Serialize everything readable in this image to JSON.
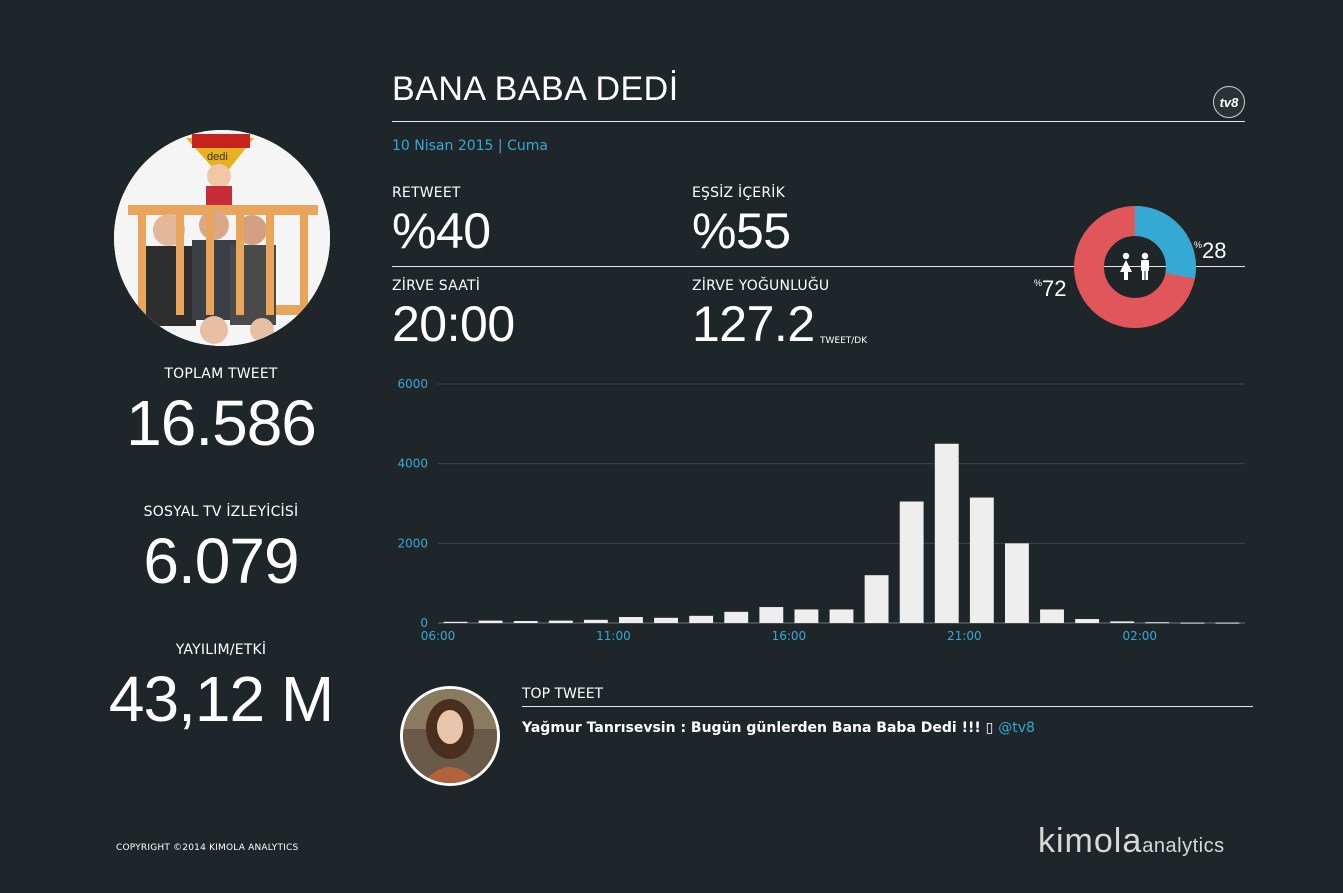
{
  "colors": {
    "background": "#1f2629",
    "accent_blue": "#35a9d3",
    "accent_red": "#e0565b",
    "bar": "#eeeeee"
  },
  "left": {
    "poster_alt": "Bana Baba Dedi poster",
    "total_tweet": {
      "label": "TOPLAM TWEET",
      "value": "16.586"
    },
    "social_viewers": {
      "label": "SOSYAL TV İZLEYİCİSİ",
      "value": "6.079"
    },
    "reach": {
      "label": "YAYILIM/ETKİ",
      "value": "43,12 M"
    }
  },
  "header": {
    "title": "BANA BABA DEDİ",
    "channel_logo": "tv8",
    "date": "10 Nisan 2015 | Cuma"
  },
  "kpis": {
    "retweet": {
      "label": "RETWEET",
      "value": "%40"
    },
    "unique": {
      "label": "EŞSİZ İÇERİK",
      "value": "%55"
    },
    "peak_time": {
      "label": "ZİRVE SAATİ",
      "value": "20:00"
    },
    "peak_density": {
      "label": "ZİRVE YOĞUNLUĞU",
      "value": "127.2",
      "unit": "TWEET/DK"
    }
  },
  "gender": {
    "icon": "female-male-icon",
    "female_pct": 28,
    "male_pct": 72,
    "female_label": "28",
    "male_label": "72",
    "percent_symbol": "%"
  },
  "chart_data": {
    "type": "bar",
    "x": [
      "06:00",
      "07:00",
      "08:00",
      "09:00",
      "10:00",
      "11:00",
      "12:00",
      "13:00",
      "14:00",
      "15:00",
      "16:00",
      "17:00",
      "18:00",
      "19:00",
      "20:00",
      "21:00",
      "22:00",
      "23:00",
      "00:00",
      "01:00",
      "02:00",
      "03:00",
      "04:00"
    ],
    "tick_labels": [
      "06:00",
      "11:00",
      "16:00",
      "21:00",
      "02:00"
    ],
    "tick_indices": [
      0,
      5,
      10,
      15,
      20
    ],
    "values": [
      30,
      60,
      50,
      60,
      80,
      150,
      130,
      180,
      280,
      400,
      340,
      340,
      1200,
      3050,
      4500,
      3150,
      2000,
      340,
      100,
      40,
      20,
      10,
      10
    ],
    "ylim": [
      0,
      6000
    ],
    "yticks": [
      "0",
      "2000",
      "4000",
      "6000"
    ],
    "grid": true
  },
  "top_tweet": {
    "label": "TOP TWEET",
    "author": "Yağmur Tanrısevsin",
    "text": "Yağmur Tanrısevsin : Bugün günlerden Bana Baba Dedi !!! ",
    "emoji_box": "▯",
    "handle": "@tv8"
  },
  "footer": {
    "copyright": "COPYRIGHT ©2014 KIMOLA ANALYTICS",
    "brand": "kimola",
    "brand_sub": "analytics"
  }
}
